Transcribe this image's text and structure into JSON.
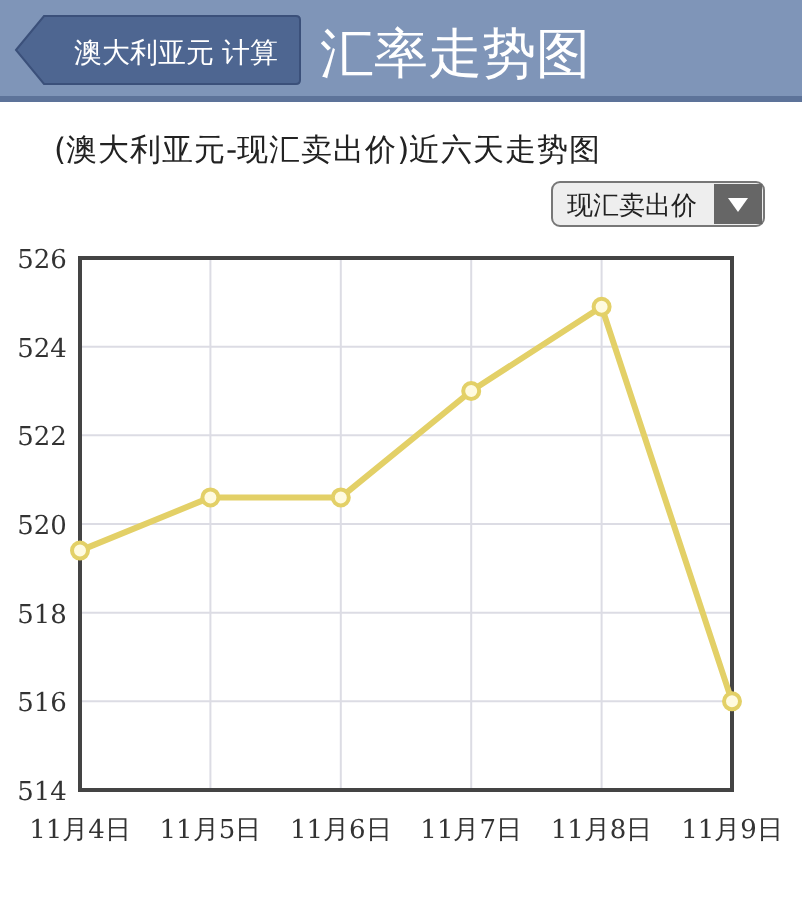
{
  "chart_data": {
    "type": "line",
    "title": "汇率走势图",
    "subtitle": "(澳大利亚元-现汇卖出价)近六天走势图",
    "annotations": [
      "澳大利亚元 计算",
      "现汇卖出价"
    ],
    "categories": [
      "11月4日",
      "11月5日",
      "11月6日",
      "11月7日",
      "11月8日",
      "11月9日"
    ],
    "series": [
      {
        "color": "#e3d067",
        "values": [
          519.4,
          520.6,
          520.6,
          523.0,
          524.9,
          516.0
        ]
      }
    ],
    "ylim": [
      514,
      526
    ],
    "yticks": [
      514,
      516,
      518,
      520,
      522,
      524,
      526
    ],
    "grid": true,
    "marker": "circle",
    "line_style": "solid"
  }
}
